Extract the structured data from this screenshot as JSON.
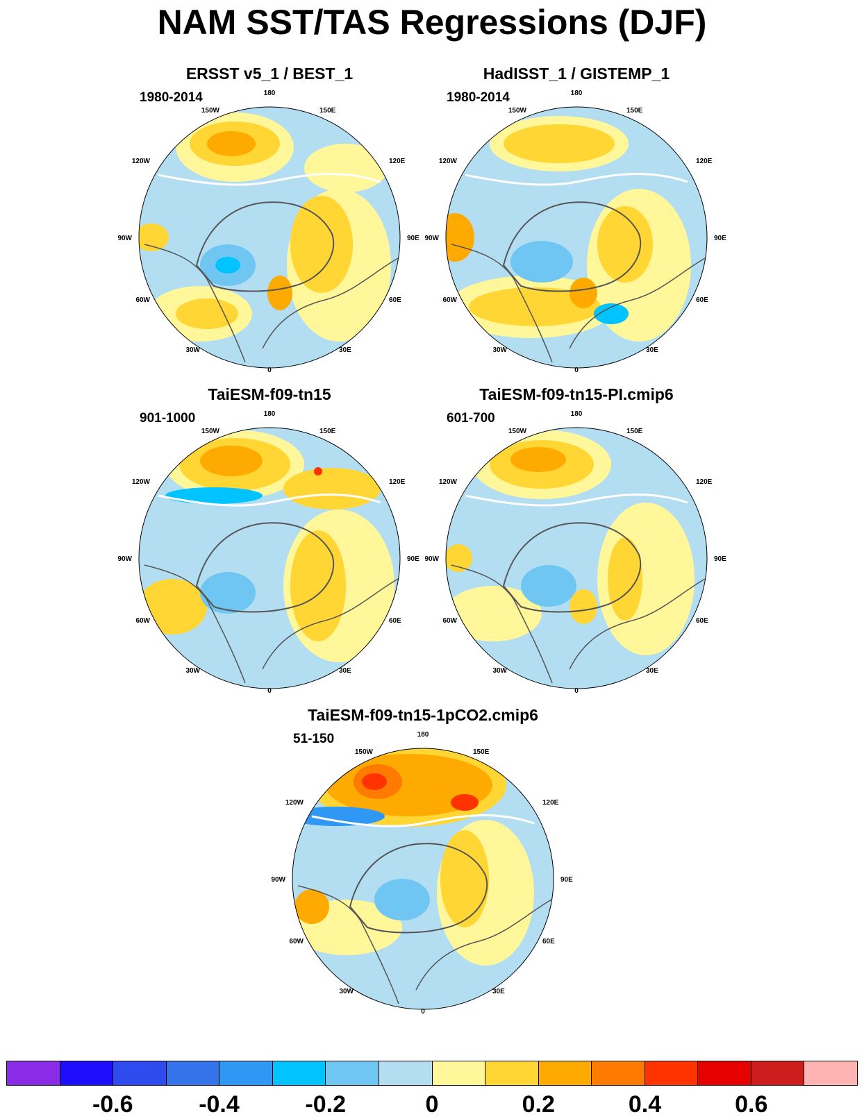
{
  "title": "NAM SST/TAS Regressions (DJF)",
  "lon_labels": {
    "top": "180",
    "tl": "150W",
    "tr": "150E",
    "ul": "120W",
    "ur": "120E",
    "l": "90W",
    "r": "90E",
    "ll": "60W",
    "lr": "60E",
    "bl": "30W",
    "br": "30E",
    "bottom": "0"
  },
  "panels": [
    {
      "title": "ERSST v5_1 / BEST_1",
      "period": "1980-2014"
    },
    {
      "title": "HadISST_1 / GISTEMP_1",
      "period": "1980-2014"
    },
    {
      "title": "TaiESM-f09-tn15",
      "period": "901-1000"
    },
    {
      "title": "TaiESM-f09-tn15-PI.cmip6",
      "period": "601-700"
    },
    {
      "title": "TaiESM-f09-tn15-1pCO2.cmip6",
      "period": "51-150"
    }
  ],
  "colorbar": {
    "colors": [
      "#8a2be8",
      "#1e0cff",
      "#2e4bf0",
      "#3573eb",
      "#2f98f5",
      "#00c3ff",
      "#6fc6f3",
      "#b3def2",
      "#fff79a",
      "#ffd633",
      "#ffaa00",
      "#ff7a00",
      "#ff3300",
      "#e60000",
      "#cc1c1c",
      "#ffb3b3"
    ],
    "tick_labels": [
      "-0.6",
      "-0.4",
      "-0.2",
      "0",
      "0.2",
      "0.4",
      "0.6"
    ]
  }
}
